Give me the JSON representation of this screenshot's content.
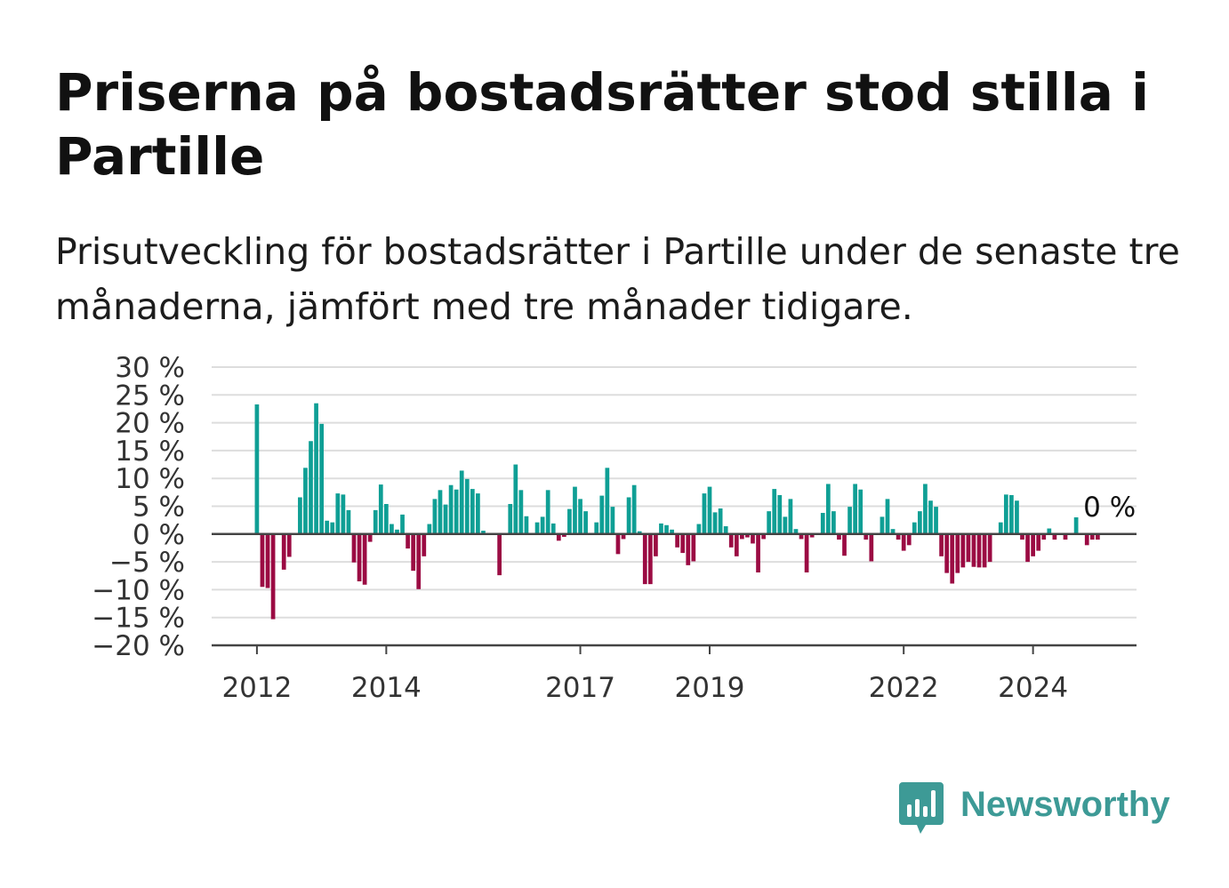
{
  "title": "Priserna på bostadsrätter stod stilla i Partille",
  "subtitle": "Prisutveckling för bostadsrätter i Partille under de senaste tre månaderna, jämfört med tre månader tidigare.",
  "brand": {
    "name": "Newsworthy",
    "color": "#3d9a96",
    "icon": "newsworthy-logo-icon"
  },
  "colors": {
    "positive": "#0f9f95",
    "negative": "#9b0b43",
    "grid": "#dddddd",
    "axis": "#444444",
    "label": "#333333"
  },
  "chart_data": {
    "type": "bar",
    "title": "Priserna på bostadsrätter stod stilla i Partille",
    "xlabel": "",
    "ylabel": "",
    "unit": "%",
    "ylim": [
      -20,
      30
    ],
    "yticks": [
      30,
      25,
      20,
      15,
      10,
      5,
      0,
      -5,
      -10,
      -15,
      -20
    ],
    "ytick_labels": [
      "30 %",
      "25 %",
      "20 %",
      "15 %",
      "10 %",
      "5 %",
      "0 %",
      "−5 %",
      "−10 %",
      "−15 %",
      "−20 %"
    ],
    "xlim": [
      2011.3,
      2025.6
    ],
    "xticks": [
      2012,
      2014,
      2017,
      2019,
      2022,
      2024
    ],
    "xtick_labels": [
      "2012",
      "2014",
      "2017",
      "2019",
      "2022",
      "2024"
    ],
    "grid": true,
    "legend": "none",
    "annotation": {
      "label": "0 %",
      "x": 2024.75,
      "y": 0
    },
    "start": "2012-01",
    "values": [
      23.3,
      -9.5,
      -9.7,
      -15.3,
      0,
      -6.4,
      -4.1,
      0,
      6.6,
      11.9,
      16.7,
      23.5,
      19.8,
      2.4,
      2.1,
      7.3,
      7.1,
      4.3,
      -5.1,
      -8.5,
      -9.1,
      -1.4,
      4.3,
      8.9,
      5.4,
      1.8,
      0.8,
      3.5,
      -2.6,
      -6.6,
      -9.9,
      -4.0,
      1.8,
      6.3,
      7.9,
      5.3,
      8.8,
      8.0,
      11.4,
      9.9,
      8.1,
      7.3,
      0.6,
      0,
      0,
      -7.4,
      0,
      5.4,
      12.5,
      7.9,
      3.2,
      0,
      2.1,
      3.1,
      7.9,
      1.9,
      -1.2,
      -0.5,
      4.5,
      8.5,
      6.3,
      4.1,
      0,
      2.1,
      6.9,
      11.9,
      4.9,
      -3.6,
      -0.9,
      6.6,
      8.8,
      0.5,
      -9.0,
      -9.0,
      -4.0,
      1.9,
      1.6,
      0.8,
      -2.4,
      -3.4,
      -5.6,
      -4.9,
      1.8,
      7.3,
      8.5,
      3.9,
      4.6,
      1.4,
      -2.4,
      -4.0,
      -0.9,
      -0.6,
      -1.7,
      -6.9,
      -0.9,
      4.1,
      8.1,
      7.0,
      3.1,
      6.3,
      0.9,
      -0.9,
      -6.9,
      -0.6,
      0,
      3.8,
      9.0,
      4.1,
      -1.0,
      -3.9,
      4.9,
      9.0,
      8.0,
      -1.0,
      -4.9,
      0,
      3.1,
      6.3,
      0.9,
      -1.0,
      -3.0,
      -2.0,
      2.1,
      4.1,
      9.0,
      6.0,
      4.9,
      -4.0,
      -7.0,
      -8.9,
      -7.0,
      -6.0,
      -5.0,
      -5.9,
      -6.0,
      -6.0,
      -5.0,
      0,
      2.1,
      7.1,
      7.0,
      6.0,
      -1.0,
      -5.0,
      -4.0,
      -3.0,
      -1.0,
      1.0,
      -1.0,
      0,
      -1.0,
      0,
      3.0,
      -0.1,
      -2.0,
      -1.0,
      -1.0
    ]
  }
}
